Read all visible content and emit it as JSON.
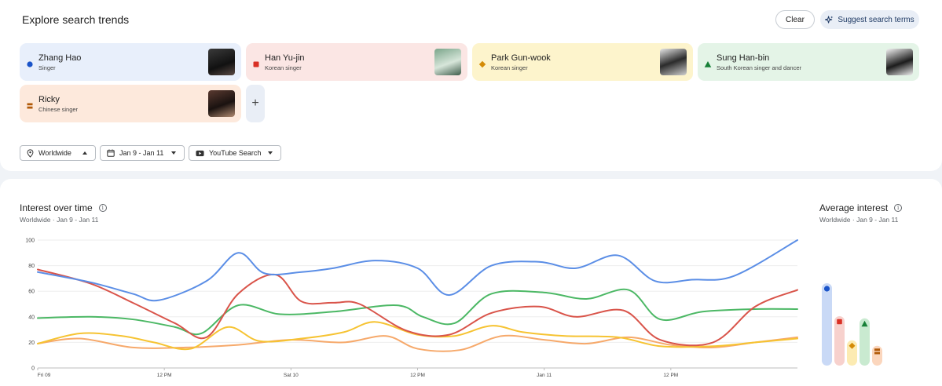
{
  "header": {
    "title": "Explore search trends",
    "clear_label": "Clear",
    "suggest_label": "Suggest search terms"
  },
  "terms": [
    {
      "name": "Zhang Hao",
      "desc": "Singer",
      "color": "#1a54c9",
      "bg": "#e8effb",
      "shape": "circle"
    },
    {
      "name": "Han Yu-jin",
      "desc": "Korean singer",
      "color": "#d93025",
      "bg": "#fbe6e4",
      "shape": "square"
    },
    {
      "name": "Park Gun-wook",
      "desc": "Korean singer",
      "color": "#d48b06",
      "bg": "#fdf4cc",
      "shape": "diamond"
    },
    {
      "name": "Sung Han-bin",
      "desc": "South Korean singer and dancer",
      "color": "#188038",
      "bg": "#e4f4e7",
      "shape": "triangle"
    },
    {
      "name": "Ricky",
      "desc": "Chinese singer",
      "color": "#b15a09",
      "bg": "#fde9dc",
      "shape": "stack"
    }
  ],
  "filters": {
    "region": "Worldwide",
    "date": "Jan 9 - Jan 11",
    "property": "YouTube Search"
  },
  "interest_over_time": {
    "title": "Interest over time",
    "subtitle_region": "Worldwide",
    "subtitle_range": "Jan 9 - Jan 11"
  },
  "average_interest": {
    "title": "Average interest",
    "subtitle_region": "Worldwide",
    "subtitle_range": "Jan 9 - Jan 11"
  },
  "chart_data": [
    {
      "type": "line",
      "title": "Interest over time",
      "xlabel": "",
      "ylabel": "",
      "ylim": [
        0,
        100
      ],
      "yticks": [
        0,
        20,
        40,
        60,
        80,
        100
      ],
      "x_tick_labels": [
        "Fri 09",
        "12 PM",
        "Sat 10",
        "12 PM",
        "Jan 11",
        "12 PM"
      ],
      "x_tick_positions": [
        0,
        12,
        24,
        36,
        48,
        60
      ],
      "x_max": 72,
      "grid": true,
      "series": [
        {
          "name": "Zhang Hao",
          "color": "#5b8ee6",
          "x": [
            0,
            5,
            9,
            11.5,
            16,
            19,
            21.5,
            25,
            28,
            32,
            36,
            39,
            43,
            47.5,
            51,
            55,
            58.5,
            62,
            66,
            72
          ],
          "y": [
            75,
            67,
            58,
            53,
            68,
            90,
            74,
            75,
            78,
            84,
            78,
            57,
            80,
            83,
            78,
            88,
            68,
            69,
            72,
            100
          ]
        },
        {
          "name": "Han Yu-jin",
          "color": "#d9544a",
          "x": [
            0,
            5,
            9,
            13,
            16,
            19,
            22.5,
            25,
            28,
            30.5,
            35,
            39,
            43,
            47.5,
            51,
            55.5,
            59,
            64,
            68,
            72
          ],
          "y": [
            77,
            66,
            51,
            35,
            24,
            58,
            73,
            52,
            51,
            50,
            29,
            26,
            43,
            48,
            40,
            45,
            22,
            20,
            48,
            61
          ]
        },
        {
          "name": "Park Gun-wook",
          "color": "#f6c332",
          "x": [
            0,
            4,
            8,
            11,
            14.5,
            18,
            21,
            25,
            29,
            32,
            36,
            39.5,
            43,
            46,
            50,
            55,
            59,
            64,
            68,
            72
          ],
          "y": [
            19,
            27,
            25,
            20,
            15,
            32,
            21,
            23,
            28,
            36,
            26,
            25,
            33,
            28,
            25,
            24,
            17,
            17,
            20,
            23
          ]
        },
        {
          "name": "Sung Han-bin",
          "color": "#4cb865",
          "x": [
            0,
            5,
            9,
            13,
            15.5,
            19,
            23,
            28,
            34,
            36.5,
            39.5,
            43,
            48,
            52,
            56,
            59,
            63,
            68,
            72
          ],
          "y": [
            39,
            40,
            38,
            32,
            27,
            49,
            42,
            44,
            49,
            40,
            35,
            58,
            59,
            54,
            61,
            38,
            44,
            46,
            46
          ]
        },
        {
          "name": "Ricky",
          "color": "#f6a96b",
          "x": [
            0,
            4,
            9,
            14,
            19,
            24,
            29,
            33,
            36,
            40,
            44,
            48,
            52,
            56,
            60,
            64,
            68,
            72
          ],
          "y": [
            19,
            23,
            16,
            16,
            18,
            22,
            20,
            25,
            15,
            14,
            25,
            22,
            19,
            24,
            18,
            16,
            20,
            24
          ]
        }
      ]
    },
    {
      "type": "bar",
      "title": "Average interest",
      "categories": [
        "Zhang Hao",
        "Han Yu-jin",
        "Park Gun-wook",
        "Sung Han-bin",
        "Ricky"
      ],
      "values": [
        75,
        45,
        23,
        43,
        18
      ],
      "colors": [
        "#c9d9f6",
        "#f7d1cd",
        "#fcebb2",
        "#c9ead0",
        "#fbd6bd"
      ],
      "marker_colors": [
        "#1a54c9",
        "#d93025",
        "#d48b06",
        "#188038",
        "#b15a09"
      ],
      "ylim": [
        0,
        100
      ]
    }
  ]
}
